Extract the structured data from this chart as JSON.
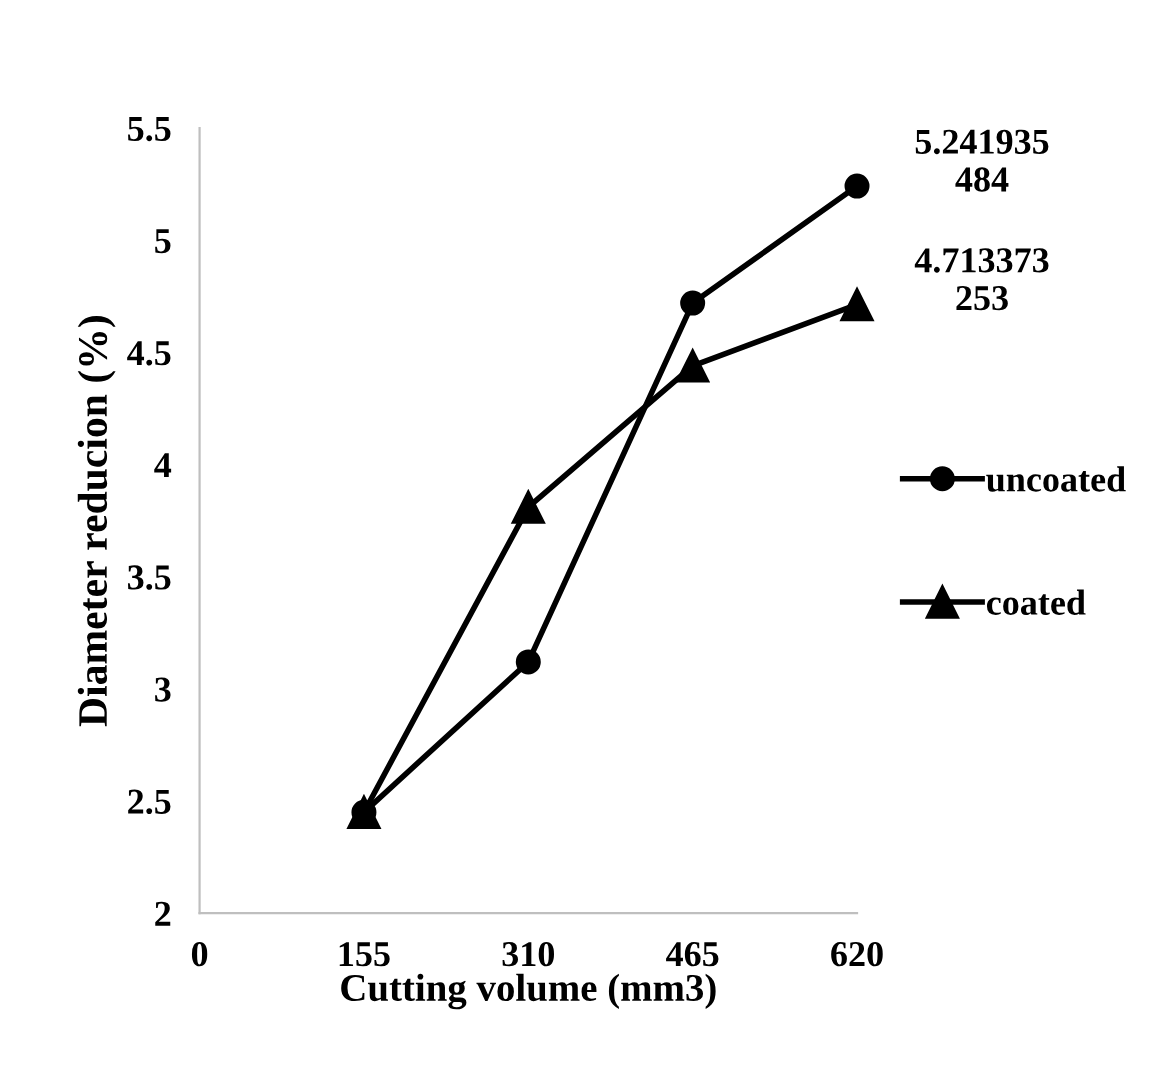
{
  "chart_data": {
    "type": "line",
    "xlabel": "Cutting volume (mm3)",
    "ylabel": "Diameter reducion (%)",
    "x": [
      155,
      310,
      465,
      620
    ],
    "xlim": [
      0,
      620
    ],
    "xticks": [
      0,
      155,
      310,
      465,
      620
    ],
    "ylim": [
      2,
      5.5
    ],
    "yticks": [
      2,
      2.5,
      3,
      3.5,
      4,
      4.5,
      5,
      5.5
    ],
    "grid": false,
    "legend": "right",
    "line_style": "solid",
    "series": [
      {
        "name": "uncoated",
        "color": "#000000",
        "marker": "circle",
        "values": [
          2.45,
          3.12,
          4.72,
          5.241935484
        ],
        "value_labels": [
          null,
          null,
          null,
          "5.241935484"
        ]
      },
      {
        "name": "coated",
        "color": "#000000",
        "marker": "triangle",
        "values": [
          2.45,
          3.81,
          4.44,
          4.713373253
        ],
        "value_labels": [
          null,
          null,
          null,
          "4.713373253"
        ]
      }
    ]
  }
}
